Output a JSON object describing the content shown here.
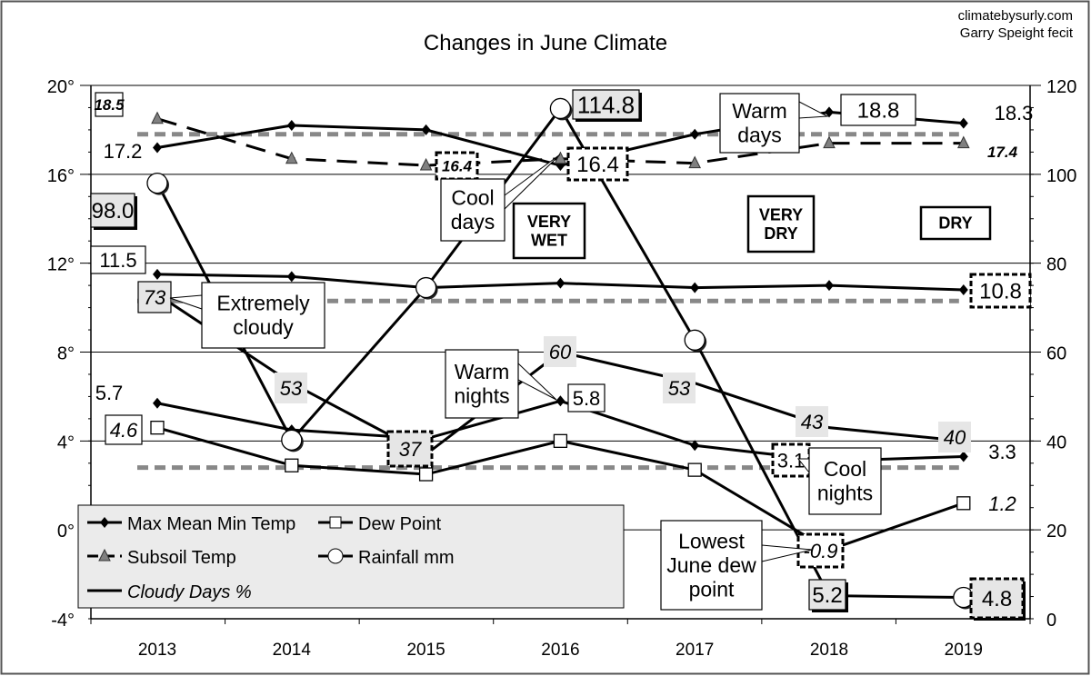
{
  "credits": [
    "climatebysurly.com",
    "Garry Speight fecit"
  ],
  "chart_data": {
    "type": "line",
    "title": "Changes in June Climate",
    "categories": [
      "2013",
      "2014",
      "2015",
      "2016",
      "2017",
      "2018",
      "2019"
    ],
    "left_axis": {
      "range": [
        -4,
        20
      ],
      "ticks": [
        "20°",
        "16°",
        "12°",
        "8°",
        "4°",
        "0°",
        "-4°"
      ],
      "tick_values": [
        20,
        16,
        12,
        8,
        4,
        0,
        -4
      ]
    },
    "right_axis": {
      "range": [
        0,
        120
      ],
      "ticks": [
        "120",
        "100",
        "80",
        "60",
        "40",
        "20",
        "0"
      ],
      "tick_values": [
        120,
        100,
        80,
        60,
        40,
        20,
        0
      ]
    },
    "grid": true,
    "legend_position": "bottom-left",
    "series": [
      {
        "name": "Max Mean Min Temp",
        "part": "max",
        "axis": "left",
        "marker": "diamond",
        "values": [
          17.2,
          18.2,
          18.0,
          16.4,
          17.8,
          18.8,
          18.3
        ]
      },
      {
        "part": "mean",
        "axis": "left",
        "marker": "diamond",
        "values": [
          11.5,
          11.4,
          10.9,
          11.1,
          10.9,
          11.0,
          10.8
        ]
      },
      {
        "part": "min",
        "axis": "left",
        "marker": "diamond",
        "values": [
          5.7,
          4.5,
          4.1,
          5.8,
          3.8,
          3.1,
          3.3
        ]
      },
      {
        "name": "Subsoil Temp",
        "axis": "left",
        "marker": "triangle",
        "dashed": true,
        "values": [
          18.5,
          16.7,
          16.4,
          16.7,
          16.5,
          17.4,
          17.4
        ]
      },
      {
        "name": "Dew Point",
        "axis": "left",
        "marker": "square",
        "values": [
          4.6,
          2.9,
          2.5,
          4.0,
          2.7,
          -0.9,
          1.2
        ]
      },
      {
        "name": "Rainfall mm",
        "axis": "right",
        "marker": "circle",
        "values": [
          98.0,
          40.2,
          74.5,
          114.8,
          62.7,
          5.2,
          4.8
        ]
      },
      {
        "name": "Cloudy Days %",
        "axis": "right",
        "marker": "none",
        "values": [
          73,
          53,
          37,
          60,
          53,
          43,
          40
        ]
      }
    ],
    "reference_lines": [
      {
        "axis": "left",
        "value": 17.8,
        "color": "#888888"
      },
      {
        "axis": "left",
        "value": 10.3,
        "color": "#888888"
      },
      {
        "axis": "left",
        "value": 2.8,
        "color": "#888888"
      }
    ],
    "data_labels": {
      "max": [
        "17.2",
        "18.8",
        "18.3",
        "16.4"
      ],
      "subsoil": [
        "18.5",
        "16.4",
        "17.4"
      ],
      "mean": [
        "11.5",
        "10.8"
      ],
      "min": [
        "5.7",
        "5.8",
        "3.1",
        "3.3"
      ],
      "dew": [
        "4.6",
        "1.2",
        "-0.9"
      ],
      "rain": [
        "98.0",
        "114.8",
        "5.2",
        "4.8"
      ],
      "cloudy": [
        "73",
        "53",
        "37",
        "60",
        "53",
        "43",
        "40"
      ]
    },
    "annotations": {
      "extremely_cloudy": [
        "Extremely",
        "cloudy"
      ],
      "cool_days": [
        "Cool",
        "days"
      ],
      "very_wet": [
        "VERY",
        "WET"
      ],
      "warm_days": [
        "Warm",
        "days"
      ],
      "very_dry": [
        "VERY",
        "DRY"
      ],
      "dry": [
        "DRY"
      ],
      "warm_nights": [
        "Warm",
        "nights"
      ],
      "cool_nights": [
        "Cool",
        "nights"
      ],
      "lowest_dew": [
        "Lowest",
        "June dew",
        "point"
      ]
    },
    "colors": {
      "line": "#000000",
      "reference": "#888888",
      "subsoil_marker": "#808080",
      "legend_bg": "#ebebeb",
      "label_shade": "#e6e6e6"
    }
  }
}
